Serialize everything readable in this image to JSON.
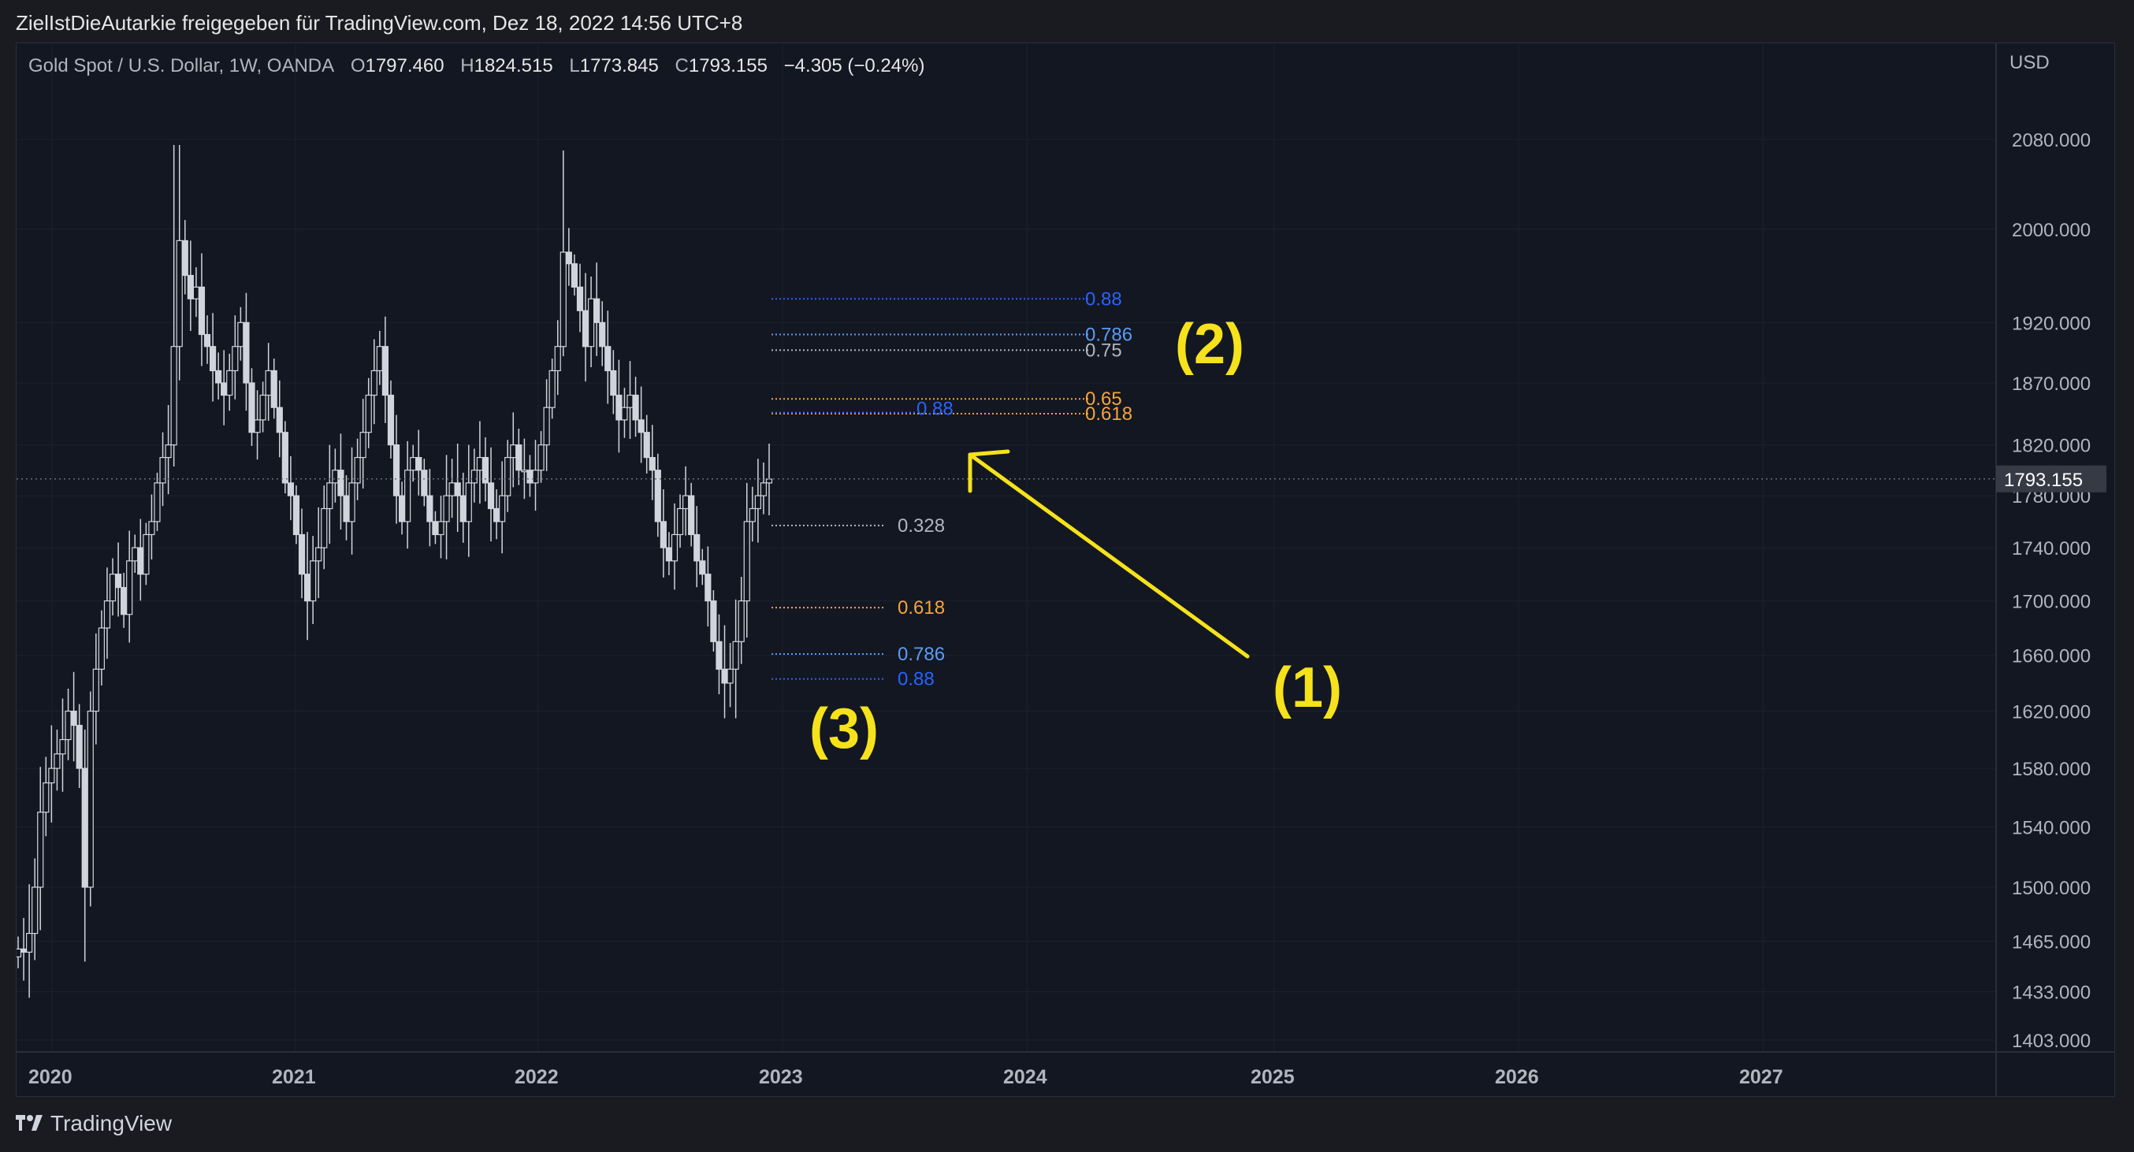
{
  "header": {
    "shared_by": "ZielIstDieAutarkie freigegeben für TradingView.com, Dez 18, 2022 14:56 UTC+8"
  },
  "legend": {
    "symbol": "Gold Spot / U.S. Dollar, 1W, OANDA",
    "open_label": "O",
    "open": "1797.460",
    "high_label": "H",
    "high": "1824.515",
    "low_label": "L",
    "low": "1773.845",
    "close_label": "C",
    "close": "1793.155",
    "change": "−4.305 (−0.24%)"
  },
  "axis": {
    "currency": "USD"
  },
  "footer": {
    "brand": "TradingView"
  },
  "colors": {
    "background": "#131722",
    "candle": "#d1d4dc",
    "annotation": "#f5e21b",
    "fib_blue": "#2962ff",
    "fib_lightblue": "#5b9cf6",
    "fib_gray": "#b2b5be",
    "fib_orange": "#f7a43b"
  },
  "chart_data": {
    "type": "candlestick",
    "interval": "1W",
    "log_scale": true,
    "ylim": [
      1390,
      2180
    ],
    "y_ticks": [
      "2080.000",
      "2000.000",
      "1920.000",
      "1870.000",
      "1820.000",
      "1780.000",
      "1740.000",
      "1700.000",
      "1660.000",
      "1620.000",
      "1580.000",
      "1540.000",
      "1500.000",
      "1465.000",
      "1433.000",
      "1403.000"
    ],
    "x_ticks": [
      "2020",
      "2021",
      "2022",
      "2023",
      "2024",
      "2025",
      "2026",
      "2027"
    ],
    "last_price": "1793.155",
    "approximate_weekly_closes": [
      1460,
      1458,
      1470,
      1500,
      1550,
      1570,
      1580,
      1590,
      1600,
      1620,
      1610,
      1580,
      1500,
      1620,
      1650,
      1680,
      1700,
      1720,
      1710,
      1690,
      1730,
      1740,
      1720,
      1750,
      1760,
      1790,
      1810,
      1820,
      1900,
      1990,
      1960,
      1940,
      1950,
      1910,
      1900,
      1880,
      1870,
      1860,
      1880,
      1900,
      1920,
      1870,
      1830,
      1840,
      1860,
      1880,
      1850,
      1830,
      1790,
      1780,
      1750,
      1720,
      1700,
      1730,
      1740,
      1770,
      1790,
      1800,
      1780,
      1760,
      1790,
      1810,
      1830,
      1860,
      1880,
      1900,
      1860,
      1820,
      1780,
      1760,
      1800,
      1810,
      1800,
      1780,
      1760,
      1750,
      1760,
      1780,
      1790,
      1780,
      1760,
      1790,
      1800,
      1810,
      1790,
      1770,
      1760,
      1780,
      1810,
      1820,
      1800,
      1800,
      1790,
      1800,
      1820,
      1850,
      1880,
      1900,
      1980,
      1970,
      1950,
      1930,
      1900,
      1940,
      1920,
      1900,
      1880,
      1860,
      1840,
      1850,
      1860,
      1840,
      1830,
      1810,
      1800,
      1760,
      1740,
      1730,
      1750,
      1770,
      1780,
      1750,
      1730,
      1720,
      1700,
      1670,
      1650,
      1640,
      1650,
      1670,
      1700,
      1760,
      1770,
      1780,
      1790,
      1793
    ],
    "high_2020": 2075,
    "high_2022": 2070,
    "low_2022": 1615,
    "fib_levels": [
      {
        "label": "0.88",
        "value": 1940,
        "color": "#2962ff"
      },
      {
        "label": "0.786",
        "value": 1910,
        "color": "#5b9cf6"
      },
      {
        "label": "0.75",
        "value": 1897,
        "color": "#b2b5be"
      },
      {
        "label": "0.65",
        "value": 1857,
        "color": "#f7a43b"
      },
      {
        "label": "0.618",
        "value": 1845,
        "color": "#f7a43b"
      },
      {
        "label": "0.88",
        "value": 1846,
        "color": "#2962ff"
      },
      {
        "label": "0.328",
        "value": 1757,
        "color": "#b2b5be"
      },
      {
        "label": "0.618",
        "value": 1695,
        "color": "#f7a43b"
      },
      {
        "label": "0.786",
        "value": 1661,
        "color": "#5b9cf6"
      },
      {
        "label": "0.88",
        "value": 1643,
        "color": "#2962ff"
      }
    ],
    "annotations": [
      "(1)",
      "(2)",
      "(3)"
    ]
  }
}
